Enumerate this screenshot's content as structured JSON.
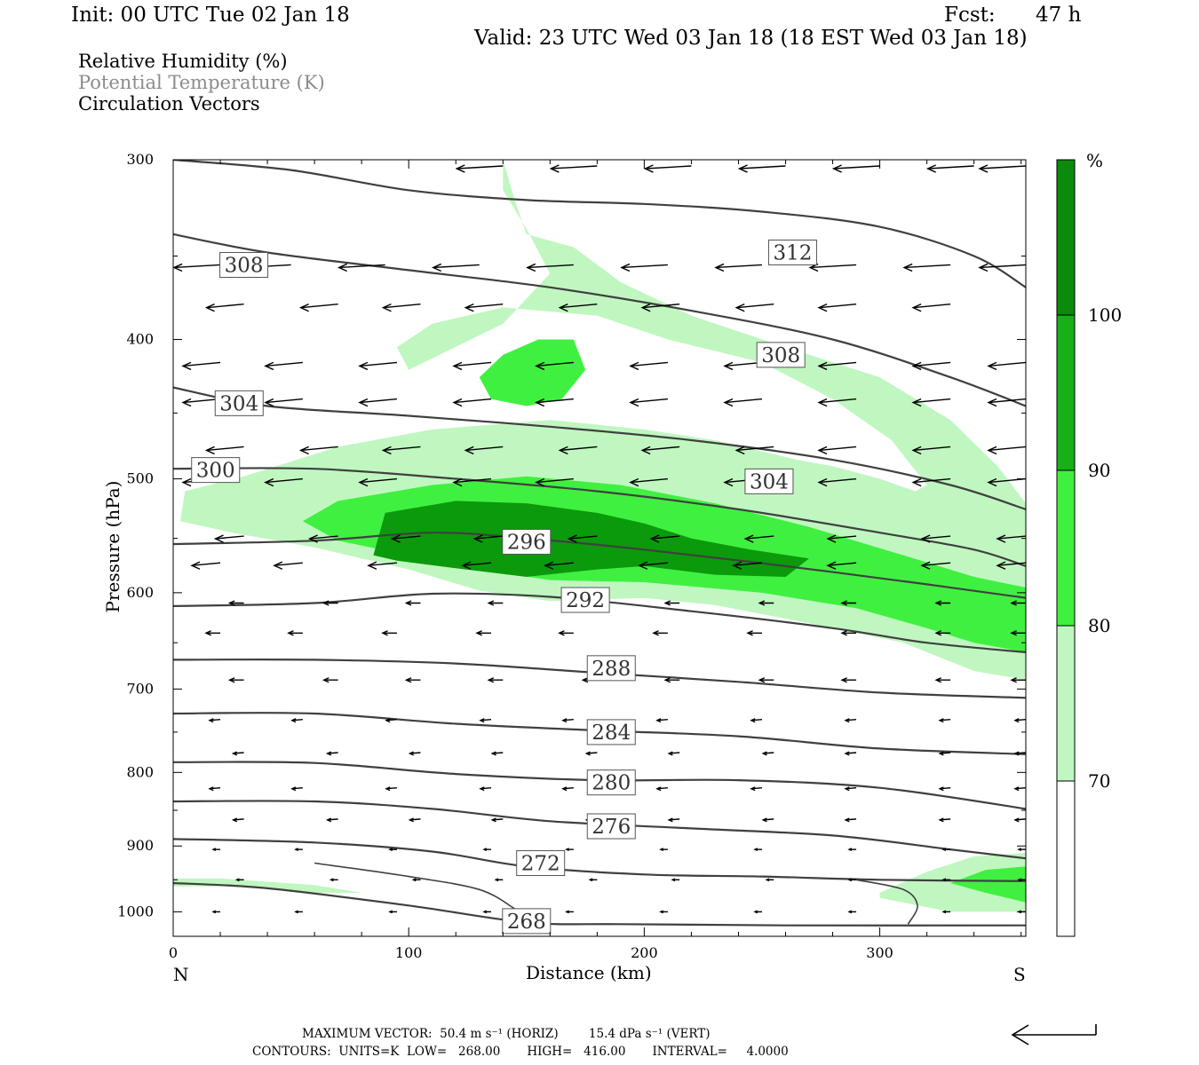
{
  "header": {
    "init": "Init: 00 UTC Tue 02 Jan 18",
    "fcst_label": "Fcst:",
    "fcst_value": "47 h",
    "valid": "Valid: 23 UTC Wed 03 Jan 18 (18 EST Wed 03 Jan 18)"
  },
  "legend": {
    "rh": "Relative Humidity (%)",
    "theta": "Potential Temperature (K)",
    "vectors": "Circulation Vectors"
  },
  "colors": {
    "rh_70": "#c0f7c0",
    "rh_80": "#40f040",
    "rh_90": "#0b9a0b",
    "contour": "#404040",
    "theta_legend": "#8c8c8c"
  },
  "chart_data": {
    "type": "contour-cross-section",
    "xlabel": "Distance (km)",
    "ylabel": "Pressure (hPa)",
    "xlim": [
      0,
      362
    ],
    "ylim": [
      1040,
      300
    ],
    "y_log_scale": true,
    "x_ticks": [
      "0",
      "100",
      "200",
      "300"
    ],
    "x_tick_values": [
      0,
      100,
      200,
      300
    ],
    "x_end_labels": {
      "left": "N",
      "right": "S"
    },
    "y_ticks": [
      "300",
      "400",
      "500",
      "600",
      "700",
      "800",
      "900",
      "1000"
    ],
    "y_tick_values": [
      300,
      400,
      500,
      600,
      700,
      800,
      900,
      1000
    ],
    "colorbar": {
      "unit": "%",
      "levels": [
        "70",
        "80",
        "90",
        "100"
      ],
      "level_values": [
        70,
        80,
        90,
        100
      ],
      "colors": [
        "#ffffff",
        "#c0f7c0",
        "#40f040",
        "#0b9a0b"
      ]
    },
    "theta_contours": [
      {
        "label": "312",
        "points": [
          [
            0,
            300
          ],
          [
            50,
            305
          ],
          [
            100,
            315
          ],
          [
            150,
            320
          ],
          [
            200,
            322
          ],
          [
            250,
            326
          ],
          [
            300,
            334
          ],
          [
            340,
            350
          ],
          [
            362,
            368
          ]
        ]
      },
      {
        "label": "308",
        "points": [
          [
            0,
            338
          ],
          [
            40,
            348
          ],
          [
            100,
            358
          ],
          [
            160,
            368
          ],
          [
            220,
            382
          ],
          [
            280,
            400
          ],
          [
            330,
            425
          ],
          [
            362,
            445
          ]
        ]
      },
      {
        "label": "304",
        "points": [
          [
            0,
            432
          ],
          [
            40,
            445
          ],
          [
            100,
            452
          ],
          [
            160,
            460
          ],
          [
            220,
            470
          ],
          [
            280,
            485
          ],
          [
            330,
            505
          ],
          [
            362,
            525
          ]
        ]
      },
      {
        "label": "300",
        "points": [
          [
            0,
            492
          ],
          [
            60,
            492
          ],
          [
            120,
            500
          ],
          [
            180,
            510
          ],
          [
            240,
            525
          ],
          [
            300,
            545
          ],
          [
            340,
            560
          ],
          [
            362,
            575
          ]
        ]
      },
      {
        "label": "296",
        "points": [
          [
            0,
            555
          ],
          [
            60,
            552
          ],
          [
            110,
            545
          ],
          [
            150,
            550
          ],
          [
            200,
            560
          ],
          [
            260,
            575
          ],
          [
            320,
            592
          ],
          [
            362,
            605
          ]
        ]
      },
      {
        "label": "292",
        "points": [
          [
            0,
            613
          ],
          [
            60,
            610
          ],
          [
            110,
            601
          ],
          [
            160,
            604
          ],
          [
            220,
            618
          ],
          [
            280,
            635
          ],
          [
            320,
            650
          ],
          [
            362,
            660
          ]
        ]
      },
      {
        "label": "288",
        "points": [
          [
            0,
            668
          ],
          [
            60,
            668
          ],
          [
            120,
            672
          ],
          [
            180,
            682
          ],
          [
            240,
            692
          ],
          [
            300,
            704
          ],
          [
            362,
            710
          ]
        ]
      },
      {
        "label": "284",
        "points": [
          [
            0,
            728
          ],
          [
            60,
            728
          ],
          [
            120,
            740
          ],
          [
            180,
            748
          ],
          [
            240,
            755
          ],
          [
            300,
            770
          ],
          [
            362,
            777
          ]
        ]
      },
      {
        "label": "280",
        "points": [
          [
            0,
            787
          ],
          [
            60,
            788
          ],
          [
            120,
            802
          ],
          [
            180,
            810
          ],
          [
            240,
            810
          ],
          [
            300,
            820
          ],
          [
            362,
            848
          ]
        ]
      },
      {
        "label": "276",
        "points": [
          [
            0,
            838
          ],
          [
            60,
            838
          ],
          [
            110,
            848
          ],
          [
            160,
            865
          ],
          [
            220,
            875
          ],
          [
            280,
            885
          ],
          [
            330,
            905
          ],
          [
            362,
            918
          ]
        ]
      },
      {
        "label": "272",
        "points": [
          [
            0,
            890
          ],
          [
            60,
            895
          ],
          [
            110,
            908
          ],
          [
            150,
            930
          ],
          [
            200,
            942
          ],
          [
            250,
            945
          ],
          [
            300,
            950
          ],
          [
            362,
            952
          ]
        ]
      },
      {
        "label": "268",
        "points": [
          [
            0,
            955
          ],
          [
            40,
            963
          ],
          [
            100,
            990
          ],
          [
            150,
            1017
          ],
          [
            190,
            1020
          ],
          [
            260,
            1022
          ],
          [
            362,
            1022
          ]
        ]
      }
    ],
    "theta_label_positions": [
      {
        "label": "312",
        "x": 263,
        "p": 348
      },
      {
        "label": "308",
        "x": 30,
        "p": 355
      },
      {
        "label": "308",
        "x": 258,
        "p": 410
      },
      {
        "label": "304",
        "x": 28,
        "p": 443
      },
      {
        "label": "304",
        "x": 253,
        "p": 502
      },
      {
        "label": "300",
        "x": 18,
        "p": 493
      },
      {
        "label": "296",
        "x": 150,
        "p": 553
      },
      {
        "label": "292",
        "x": 175,
        "p": 607
      },
      {
        "label": "288",
        "x": 186,
        "p": 677
      },
      {
        "label": "284",
        "x": 186,
        "p": 750
      },
      {
        "label": "280",
        "x": 186,
        "p": 813
      },
      {
        "label": "276",
        "x": 186,
        "p": 872
      },
      {
        "label": "272",
        "x": 156,
        "p": 925
      },
      {
        "label": "268",
        "x": 150,
        "p": 1015
      }
    ],
    "rh_regions": [
      {
        "level": 70,
        "points": [
          [
            140,
            300
          ],
          [
            145,
            320
          ],
          [
            150,
            338
          ],
          [
            170,
            345
          ],
          [
            190,
            365
          ],
          [
            220,
            385
          ],
          [
            260,
            405
          ],
          [
            300,
            425
          ],
          [
            330,
            455
          ],
          [
            350,
            490
          ],
          [
            362,
            520
          ],
          [
            362,
            690
          ],
          [
            340,
            680
          ],
          [
            310,
            650
          ],
          [
            270,
            630
          ],
          [
            230,
            612
          ],
          [
            200,
            605
          ],
          [
            160,
            608
          ],
          [
            130,
            598
          ],
          [
            100,
            578
          ],
          [
            60,
            558
          ],
          [
            25,
            545
          ],
          [
            3,
            535
          ],
          [
            5,
            510
          ],
          [
            30,
            498
          ],
          [
            70,
            475
          ],
          [
            110,
            462
          ],
          [
            160,
            455
          ],
          [
            200,
            462
          ],
          [
            230,
            470
          ],
          [
            265,
            485
          ],
          [
            280,
            490
          ],
          [
            300,
            500
          ],
          [
            315,
            510
          ],
          [
            320,
            505
          ],
          [
            305,
            470
          ],
          [
            280,
            440
          ],
          [
            250,
            415
          ],
          [
            210,
            400
          ],
          [
            180,
            385
          ],
          [
            140,
            380
          ],
          [
            110,
            390
          ],
          [
            95,
            405
          ],
          [
            100,
            420
          ],
          [
            140,
            390
          ],
          [
            160,
            360
          ],
          [
            150,
            335
          ],
          [
            140,
            315
          ]
        ]
      },
      {
        "level": 70,
        "points": [
          [
            0,
            948
          ],
          [
            20,
            948
          ],
          [
            60,
            958
          ],
          [
            80,
            970
          ],
          [
            60,
            970
          ],
          [
            30,
            960
          ],
          [
            0,
            960
          ]
        ]
      },
      {
        "level": 70,
        "points": [
          [
            300,
            970
          ],
          [
            320,
            938
          ],
          [
            340,
            915
          ],
          [
            362,
            910
          ],
          [
            362,
            1000
          ],
          [
            330,
            1000
          ],
          [
            300,
            978
          ]
        ]
      },
      {
        "level": 80,
        "points": [
          [
            55,
            535
          ],
          [
            70,
            518
          ],
          [
            110,
            505
          ],
          [
            150,
            498
          ],
          [
            190,
            505
          ],
          [
            230,
            520
          ],
          [
            270,
            540
          ],
          [
            310,
            565
          ],
          [
            340,
            585
          ],
          [
            362,
            595
          ],
          [
            362,
            660
          ],
          [
            340,
            650
          ],
          [
            320,
            635
          ],
          [
            290,
            615
          ],
          [
            250,
            600
          ],
          [
            200,
            590
          ],
          [
            160,
            588
          ],
          [
            130,
            578
          ],
          [
            100,
            565
          ],
          [
            70,
            552
          ]
        ]
      },
      {
        "level": 80,
        "points": [
          [
            130,
            425
          ],
          [
            140,
            410
          ],
          [
            155,
            400
          ],
          [
            170,
            400
          ],
          [
            175,
            420
          ],
          [
            165,
            440
          ],
          [
            150,
            445
          ],
          [
            135,
            440
          ]
        ]
      },
      {
        "level": 80,
        "points": [
          [
            330,
            955
          ],
          [
            345,
            935
          ],
          [
            362,
            930
          ],
          [
            362,
            985
          ],
          [
            345,
            970
          ]
        ]
      },
      {
        "level": 90,
        "points": [
          [
            85,
            565
          ],
          [
            90,
            528
          ],
          [
            120,
            518
          ],
          [
            150,
            520
          ],
          [
            180,
            528
          ],
          [
            200,
            537
          ],
          [
            220,
            550
          ],
          [
            245,
            560
          ],
          [
            270,
            568
          ],
          [
            260,
            585
          ],
          [
            230,
            583
          ],
          [
            200,
            575
          ],
          [
            180,
            578
          ],
          [
            150,
            585
          ],
          [
            120,
            577
          ],
          [
            95,
            570
          ]
        ]
      }
    ],
    "vector_rows": [
      {
        "p": 303,
        "xs": [
          140,
          180,
          220,
          260,
          300,
          340,
          362
        ]
      },
      {
        "p": 355,
        "xs": [
          20,
          50,
          90,
          130,
          170,
          210,
          250,
          290,
          330,
          362
        ]
      },
      {
        "p": 378,
        "xs": [
          30,
          70,
          105,
          140,
          180,
          215,
          255,
          290,
          330
        ]
      },
      {
        "p": 415,
        "xs": [
          20,
          55,
          95,
          135,
          170,
          210,
          250,
          290,
          330,
          362
        ]
      },
      {
        "p": 440,
        "xs": [
          20,
          55,
          95,
          135,
          170,
          210,
          250,
          290,
          330,
          362
        ]
      },
      {
        "p": 475,
        "xs": [
          30,
          70,
          105,
          140,
          180,
          215,
          255,
          290,
          330,
          362
        ]
      },
      {
        "p": 500,
        "xs": [
          20,
          55,
          95,
          135,
          170,
          210,
          250,
          290,
          330,
          362
        ]
      },
      {
        "p": 548,
        "xs": [
          30,
          70,
          105,
          140,
          180,
          215,
          255,
          290,
          330,
          362
        ]
      },
      {
        "p": 572,
        "xs": [
          20,
          55,
          95,
          135,
          170,
          210,
          250,
          290,
          330,
          362
        ]
      },
      {
        "p": 610,
        "xs": [
          30,
          70,
          105,
          140,
          180,
          215,
          255,
          290,
          330,
          362
        ]
      },
      {
        "p": 640,
        "xs": [
          20,
          55,
          95,
          135,
          170,
          210,
          250,
          290,
          330,
          362
        ]
      },
      {
        "p": 690,
        "xs": [
          30,
          70,
          105,
          140,
          180,
          215,
          255,
          290,
          330,
          362
        ]
      },
      {
        "p": 735,
        "xs": [
          20,
          55,
          95,
          135,
          170,
          210,
          250,
          290,
          330,
          362
        ]
      },
      {
        "p": 775,
        "xs": [
          30,
          70,
          105,
          140,
          180,
          215,
          255,
          290,
          330,
          362
        ]
      },
      {
        "p": 820,
        "xs": [
          20,
          55,
          95,
          135,
          170,
          210,
          250,
          290,
          330,
          362
        ]
      },
      {
        "p": 862,
        "xs": [
          30,
          70,
          105,
          140,
          180,
          215,
          255,
          290,
          330,
          362
        ]
      },
      {
        "p": 905,
        "xs": [
          20,
          55,
          95,
          135,
          170,
          210,
          250,
          290,
          330,
          362
        ]
      },
      {
        "p": 950,
        "xs": [
          30,
          70,
          105,
          140,
          180,
          215,
          255,
          290,
          330,
          362
        ]
      },
      {
        "p": 1000,
        "xs": [
          20,
          55,
          95,
          135,
          170,
          210,
          250,
          290,
          330,
          362
        ]
      }
    ]
  },
  "footer": {
    "max_vector": "MAXIMUM VECTOR:  50.4 m s⁻¹ (HORIZ)        15.4 dPa s⁻¹ (VERT)",
    "contours": "CONTOURS:  UNITS=K  LOW=   268.00       HIGH=   416.00       INTERVAL=     4.0000"
  }
}
